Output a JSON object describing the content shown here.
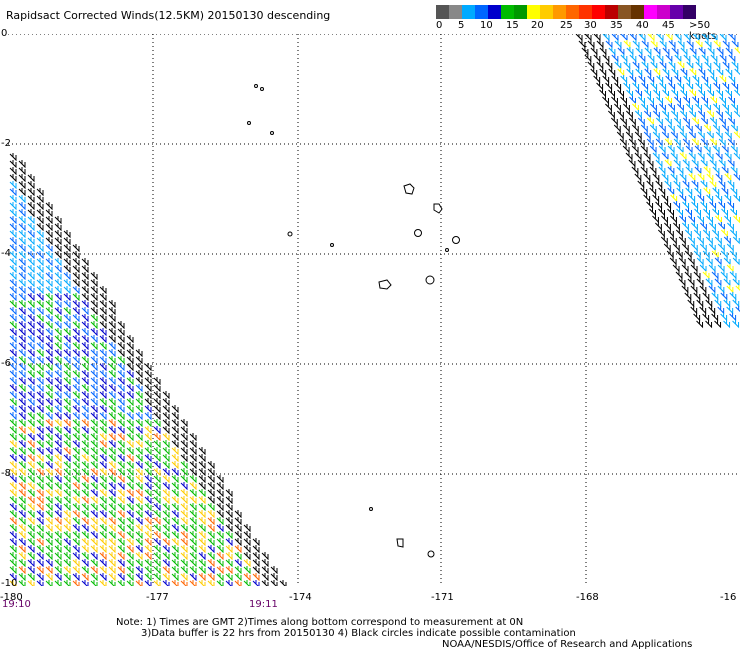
{
  "title": "Rapidsact Corrected Winds(12.5KM) 20150130 descending",
  "legend": {
    "colors": [
      "#555555",
      "#888888",
      "#00aaff",
      "#0066ff",
      "#0000cc",
      "#00bb00",
      "#009900",
      "#ffff00",
      "#ffcc00",
      "#ff9900",
      "#ff6600",
      "#ff3300",
      "#ff0000",
      "#bb0000",
      "#885522",
      "#663300",
      "#ff00ff",
      "#cc00cc",
      "#6600aa",
      "#330066"
    ],
    "labels": [
      "0",
      "5",
      "10",
      "15",
      "20",
      "25",
      "30",
      "35",
      "40",
      "45",
      ">50 knots"
    ]
  },
  "axes": {
    "y_labels": [
      "0",
      "-2",
      "-4",
      "-6",
      "-8",
      "-10"
    ],
    "x_labels": [
      "-180",
      "-177",
      "-174",
      "-171",
      "-168",
      "-16"
    ]
  },
  "times": [
    "19:10",
    "19:11"
  ],
  "notes": {
    "line1": "Note: 1) Times are GMT 2)Times along bottom correspond to measurement at 0N",
    "line2": "3)Data buffer is 22 hrs from 20150130 4) Black circles indicate possible contamination",
    "line3": "NOAA/NESDIS/Office of Research and Applications"
  }
}
